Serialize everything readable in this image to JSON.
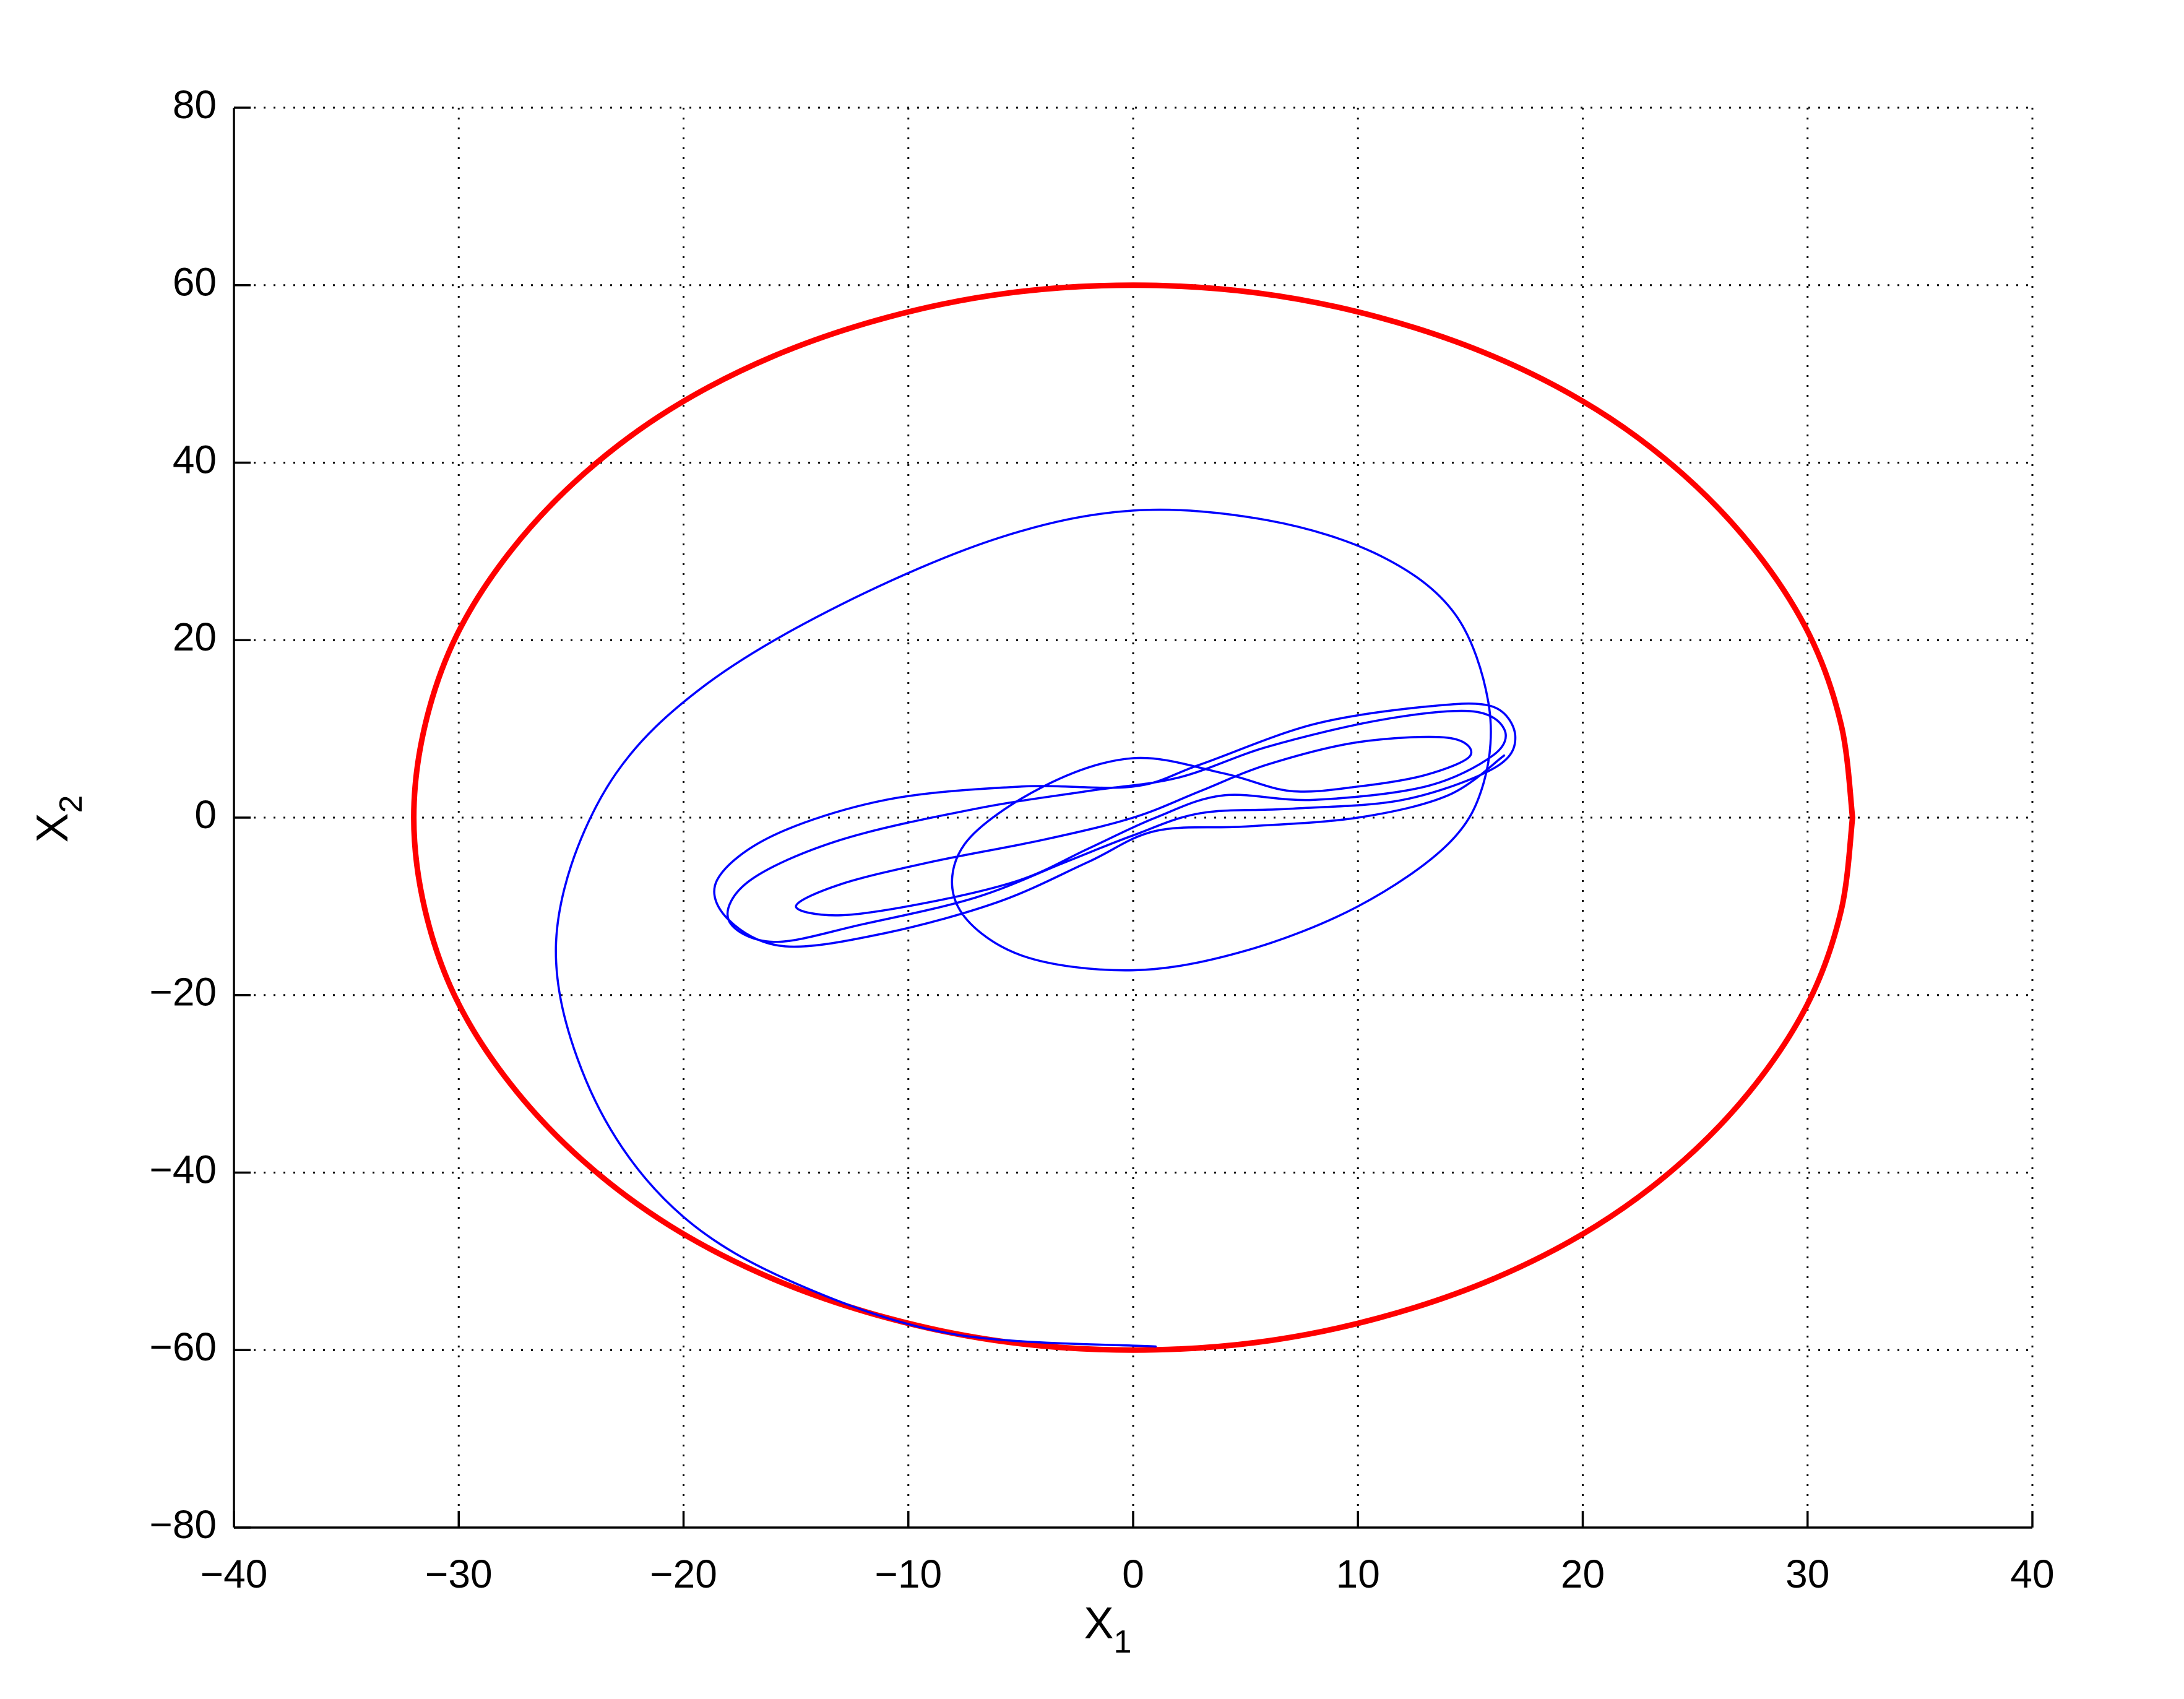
{
  "chart_data": {
    "type": "line",
    "xlabel": {
      "text": "X",
      "sub": "1"
    },
    "ylabel": {
      "text": "X",
      "sub": "2"
    },
    "xlim": [
      -40,
      40
    ],
    "ylim": [
      -80,
      80
    ],
    "xticks": [
      {
        "value": -40,
        "label": "−40"
      },
      {
        "value": -30,
        "label": "−30"
      },
      {
        "value": -20,
        "label": "−20"
      },
      {
        "value": -10,
        "label": "−10"
      },
      0,
      10,
      20,
      30,
      40
    ],
    "yticks": [
      {
        "value": -80,
        "label": "−80"
      },
      {
        "value": -60,
        "label": "−60"
      },
      {
        "value": -40,
        "label": "−40"
      },
      {
        "value": -20,
        "label": "−20"
      },
      0,
      20,
      40,
      60,
      80
    ],
    "grid": true,
    "series": [
      {
        "color": "#ff0000",
        "linewidth": 9,
        "x": [
          32,
          31.5,
          30.1,
          27.7,
          24.5,
          20.6,
          16,
          10.9,
          5.6,
          0,
          -5.6,
          -10.9,
          -16,
          -20.6,
          -24.5,
          -27.7,
          -30.1,
          -31.5,
          -32,
          -31.5,
          -30.1,
          -27.7,
          -24.5,
          -20.6,
          -16,
          -10.9,
          -5.6,
          0,
          5.6,
          10.9,
          16,
          20.6,
          24.5,
          27.7,
          30.1,
          31.5,
          32
        ],
        "y": [
          0,
          10.4,
          20.5,
          30,
          38.6,
          46,
          52,
          56.4,
          59.1,
          60,
          59.1,
          56.4,
          52,
          46,
          38.6,
          30,
          20.5,
          10.4,
          0,
          -10.4,
          -20.5,
          -30,
          -38.6,
          -46,
          -52,
          -56.4,
          -59.1,
          -60,
          -59.1,
          -56.4,
          -52,
          -46,
          -38.6,
          -30,
          -20.5,
          -10.4,
          0
        ]
      },
      {
        "color": "#0000ff",
        "linewidth": 3.5,
        "x": [
          1,
          -8,
          -15,
          -20,
          -23.5,
          -25.5,
          -25.3,
          -23,
          -19,
          -13,
          -6,
          0,
          6,
          11,
          14.3,
          15.8,
          15.6,
          14,
          10,
          5,
          0,
          -5,
          -7.8,
          -7.5,
          -4,
          0,
          4,
          7,
          10,
          13,
          15,
          14,
          10,
          6,
          3,
          0,
          -4,
          -9,
          -13,
          -15,
          -13,
          -9,
          -5,
          -2,
          1,
          4,
          8,
          13,
          16,
          16.5,
          15,
          11,
          6,
          2,
          -2,
          -7,
          -13,
          -17,
          -18,
          -16,
          -12,
          -7,
          -3,
          0,
          3,
          7,
          12,
          16,
          17,
          16,
          13,
          8,
          3,
          0,
          -5,
          -11,
          -16,
          -18.5,
          -18,
          -15.5,
          -11,
          -6,
          -2,
          1,
          5,
          10,
          14,
          16.5
        ],
        "y": [
          -59.6,
          -58.2,
          -52.5,
          -45,
          -34,
          -20,
          -8,
          5,
          15,
          24,
          31.5,
          34.6,
          33.5,
          29.5,
          23,
          13,
          4,
          -3,
          -10,
          -15,
          -17.2,
          -15.5,
          -10,
          -3,
          3.5,
          6.7,
          5,
          3,
          3.5,
          4.8,
          7,
          9,
          8.5,
          6,
          3,
          0,
          -2.5,
          -5,
          -7.5,
          -10,
          -11,
          -9.5,
          -7,
          -3.5,
          0,
          2.5,
          2,
          3.5,
          7,
          10,
          12,
          11,
          8,
          4.5,
          3,
          1,
          -2.5,
          -7,
          -11.5,
          -14,
          -12,
          -9,
          -5,
          -2,
          0.5,
          1,
          2,
          5.5,
          9,
          12.5,
          12.5,
          10.5,
          6,
          3.5,
          3.5,
          2,
          -2,
          -7,
          -11.5,
          -14.5,
          -13,
          -9.5,
          -5,
          -1.5,
          -1,
          0,
          2.5,
          7
        ]
      }
    ]
  }
}
